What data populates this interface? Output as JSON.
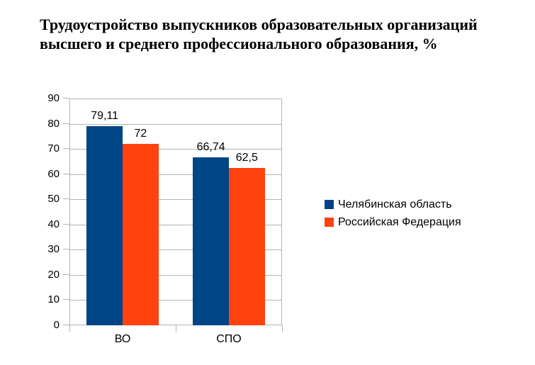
{
  "title": "Трудоустройство выпускников образовательных организаций высшего и среднего профессионального образования, %",
  "chart_data": {
    "type": "bar",
    "title": "Трудоустройство выпускников образовательных организаций высшего и среднего профессионального образования, %",
    "categories": [
      "ВО",
      "СПО"
    ],
    "series": [
      {
        "name": "Челябинская область",
        "color": "#004586",
        "values": [
          79.11,
          66.74
        ],
        "value_labels": [
          "79,11",
          "66,74"
        ]
      },
      {
        "name": "Российская Федерация",
        "color": "#FF420E",
        "values": [
          72,
          62.5
        ],
        "value_labels": [
          "72",
          "62,5"
        ]
      }
    ],
    "xlabel": "",
    "ylabel": "",
    "ylim": [
      0,
      90
    ],
    "ytick_step": 10,
    "yticks": [
      "0",
      "10",
      "20",
      "30",
      "40",
      "50",
      "60",
      "70",
      "80",
      "90"
    ],
    "grid": true,
    "legend_position": "right",
    "colors": {
      "axis": "#b3b3b3",
      "grid": "#b3b3b3",
      "text": "#000000",
      "background": "#ffffff"
    }
  }
}
